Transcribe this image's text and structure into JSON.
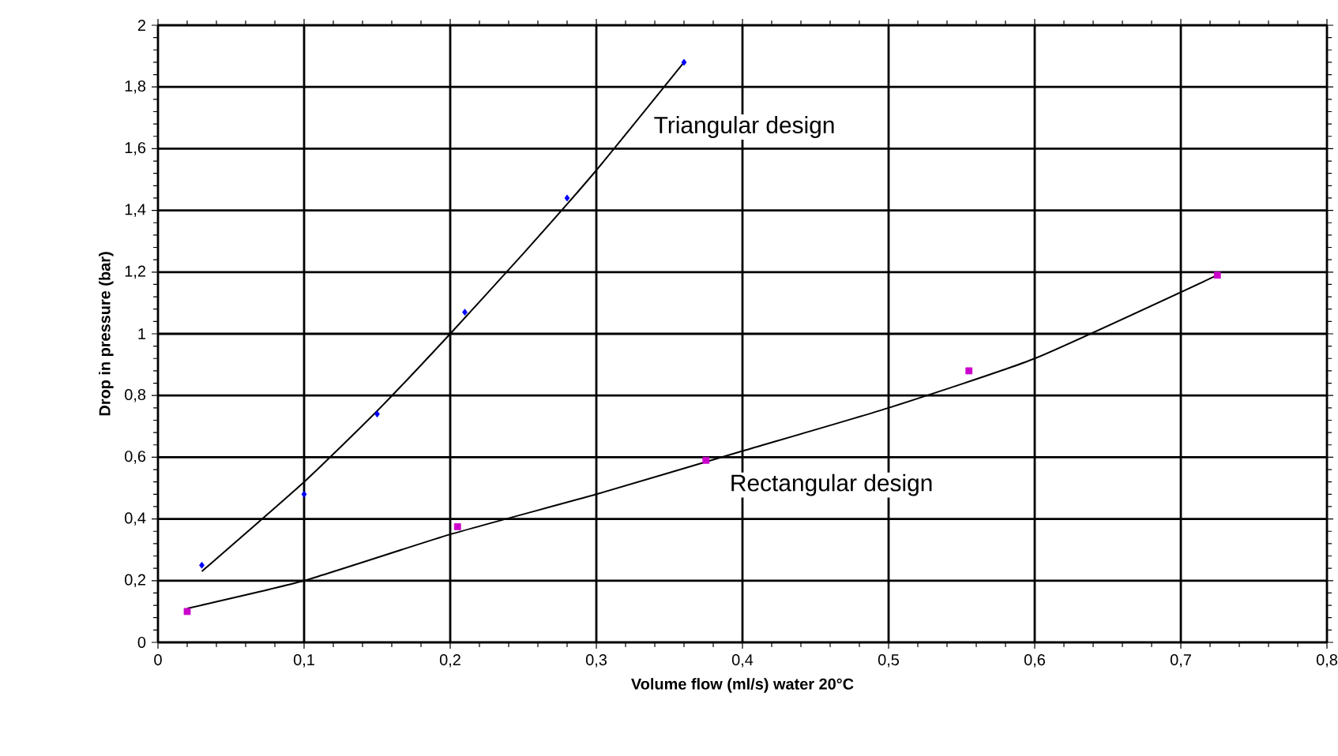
{
  "chart_data": {
    "type": "scatter",
    "xlabel": "Volume flow (ml/s) water 20°C",
    "ylabel": "Drop in pressure (bar)",
    "series": [
      {
        "name": "Triangular design",
        "color": "#0000ff",
        "marker": "diamond",
        "x": [
          0.03,
          0.1,
          0.15,
          0.21,
          0.28,
          0.36
        ],
        "values": [
          0.25,
          0.48,
          0.74,
          1.07,
          1.44,
          1.88
        ]
      },
      {
        "name": "Rectangular design",
        "color": "#cc00cc",
        "marker": "square",
        "x": [
          0.02,
          0.205,
          0.375,
          0.555,
          0.725
        ],
        "values": [
          0.1,
          0.375,
          0.59,
          0.88,
          1.19
        ]
      },
      {
        "type": "line",
        "color": "#000000",
        "x": [
          0.03,
          0.1,
          0.15,
          0.2,
          0.25,
          0.3,
          0.36
        ],
        "values": [
          0.23,
          0.52,
          0.75,
          1.0,
          1.26,
          1.53,
          1.88
        ]
      },
      {
        "type": "line",
        "color": "#000000",
        "x": [
          0.02,
          0.1,
          0.2,
          0.3,
          0.4,
          0.5,
          0.6,
          0.725
        ],
        "values": [
          0.11,
          0.2,
          0.35,
          0.48,
          0.62,
          0.76,
          0.92,
          1.19
        ]
      }
    ],
    "xlim": [
      0,
      0.8
    ],
    "ylim": [
      0,
      2
    ],
    "xticks": [
      {
        "value": 0,
        "label": "0"
      },
      {
        "value": 0.1,
        "label": "0,1"
      },
      {
        "value": 0.2,
        "label": "0,2"
      },
      {
        "value": 0.3,
        "label": "0,3"
      },
      {
        "value": 0.4,
        "label": "0,4"
      },
      {
        "value": 0.5,
        "label": "0,5"
      },
      {
        "value": 0.6,
        "label": "0,6"
      },
      {
        "value": 0.7,
        "label": "0,7"
      },
      {
        "value": 0.8,
        "label": "0,8"
      }
    ],
    "yticks": [
      {
        "value": 0,
        "label": "0"
      },
      {
        "value": 0.2,
        "label": "0,2"
      },
      {
        "value": 0.4,
        "label": "0,4"
      },
      {
        "value": 0.6,
        "label": "0,6"
      },
      {
        "value": 0.8,
        "label": "0,8"
      },
      {
        "value": 1,
        "label": "1"
      },
      {
        "value": 1.2,
        "label": "1,2"
      },
      {
        "value": 1.4,
        "label": "1,4"
      },
      {
        "value": 1.6,
        "label": "1,6"
      },
      {
        "value": 1.8,
        "label": "1,8"
      },
      {
        "value": 2,
        "label": "2"
      }
    ],
    "grid": true,
    "legend": false
  }
}
